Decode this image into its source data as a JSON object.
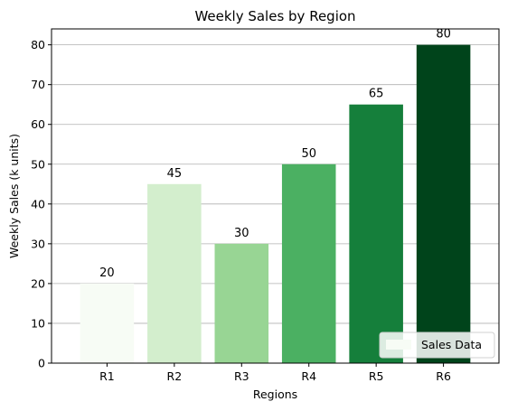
{
  "chart_data": {
    "type": "bar",
    "title": "Weekly Sales by Region",
    "xlabel": "Regions",
    "ylabel": "Weekly Sales (k units)",
    "categories": [
      "R1",
      "R2",
      "R3",
      "R4",
      "R5",
      "R6"
    ],
    "series": [
      {
        "name": "Sales Data",
        "values": [
          20,
          45,
          30,
          50,
          65,
          80
        ],
        "colors": [
          "#f7fcf5",
          "#d3eecd",
          "#98d594",
          "#4bb062",
          "#157f3b",
          "#00441b"
        ]
      }
    ],
    "data_labels": [
      "20",
      "45",
      "30",
      "50",
      "65",
      "80"
    ],
    "ylim": [
      0,
      84
    ],
    "yticks": [
      0,
      10,
      20,
      30,
      40,
      50,
      60,
      70,
      80
    ],
    "ytick_labels": [
      "0",
      "10",
      "20",
      "30",
      "40",
      "50",
      "60",
      "70",
      "80"
    ],
    "grid": {
      "y": true,
      "x": false,
      "color": "#b0b0b0"
    },
    "legend": {
      "position": "lower-right",
      "label": "Sales Data",
      "swatch_color": "#f7fcf5"
    }
  }
}
